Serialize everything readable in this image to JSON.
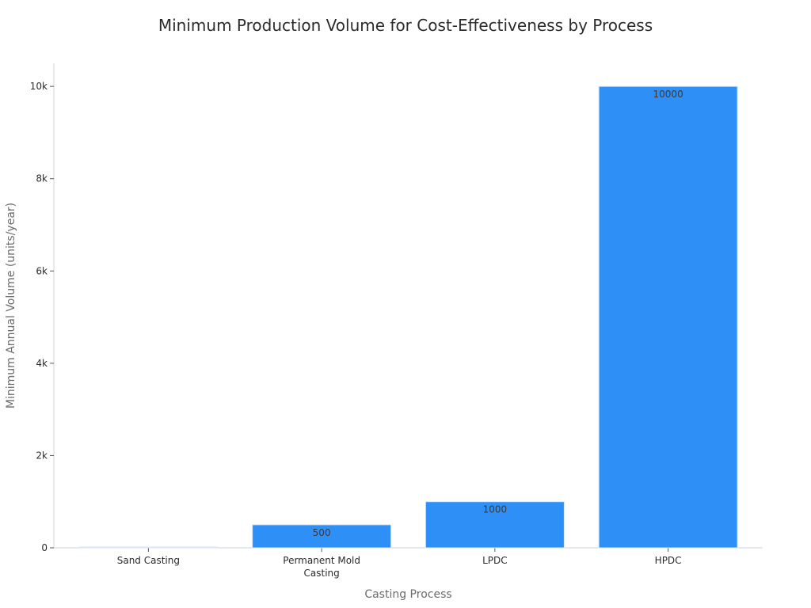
{
  "chart_data": {
    "type": "bar",
    "title": "Minimum Production Volume for Cost-Effectiveness by Process",
    "xlabel": "Casting Process",
    "ylabel": "Minimum Annual Volume (units/year)",
    "categories": [
      "Sand Casting",
      "Permanent Mold Casting",
      "LPDC",
      "HPDC"
    ],
    "category_lines": [
      [
        "Sand Casting"
      ],
      [
        "Permanent Mold",
        "Casting"
      ],
      [
        "LPDC"
      ],
      [
        "HPDC"
      ]
    ],
    "values": [
      1,
      500,
      1000,
      10000
    ],
    "data_labels": [
      "",
      "500",
      "1000",
      "10000"
    ],
    "ylim": [
      0,
      10500
    ],
    "yticks": [
      0,
      2000,
      4000,
      6000,
      8000,
      10000
    ],
    "ytick_labels": [
      "0",
      "2k",
      "4k",
      "6k",
      "8k",
      "10k"
    ],
    "bar_color": "#2e90f6",
    "grid": false,
    "legend": "none"
  }
}
